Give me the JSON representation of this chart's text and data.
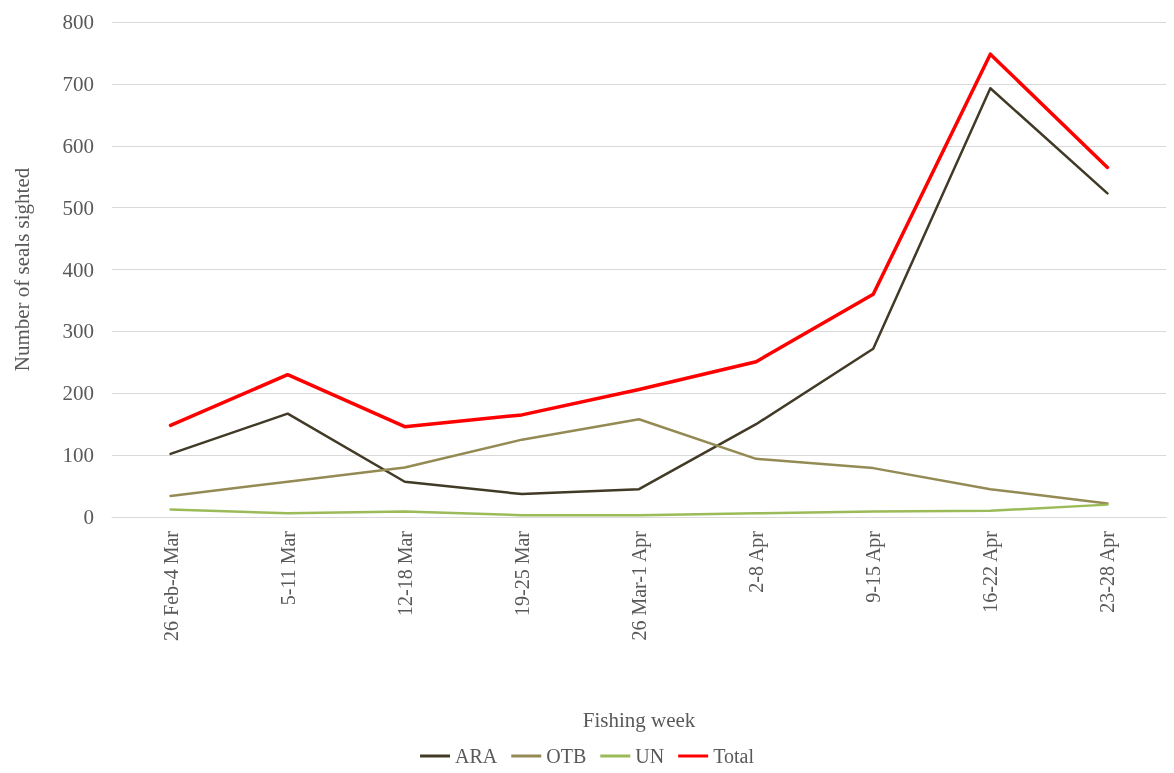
{
  "chart_data": {
    "type": "line",
    "xlabel": "Fishing week",
    "ylabel": "Number of seals sighted",
    "categories": [
      "26 Feb-4 Mar",
      "5-11 Mar",
      "12-18 Mar",
      "19-25 Mar",
      "26 Mar-1 Apr",
      "2-8 Apr",
      "9-15 Apr",
      "16-22 Apr",
      "23-28 Apr"
    ],
    "series": [
      {
        "name": "ARA",
        "color": "#403a26",
        "values": [
          102,
          167,
          57,
          37,
          45,
          150,
          272,
          693,
          523
        ]
      },
      {
        "name": "OTB",
        "color": "#948a54",
        "values": [
          34,
          57,
          80,
          125,
          158,
          94,
          79,
          45,
          22
        ]
      },
      {
        "name": "UN",
        "color": "#9bbb59",
        "values": [
          12,
          6,
          9,
          3,
          3,
          6,
          9,
          10,
          20
        ]
      },
      {
        "name": "Total",
        "color": "#ff0000",
        "values": [
          148,
          230,
          146,
          165,
          206,
          251,
          360,
          748,
          565
        ]
      }
    ],
    "ylim": [
      0,
      800
    ],
    "yticks": [
      0,
      100,
      200,
      300,
      400,
      500,
      600,
      700,
      800
    ],
    "grid": "y",
    "legend": "bottom",
    "marker": "none",
    "line_style": "solid"
  }
}
